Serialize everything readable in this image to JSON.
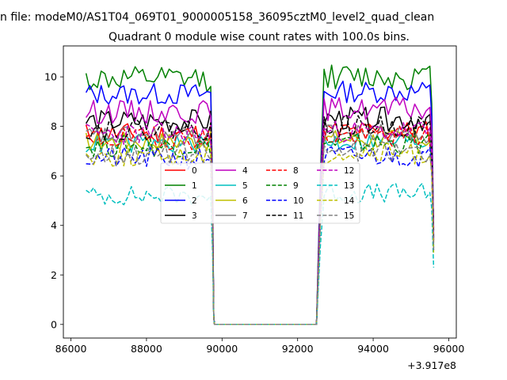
{
  "chart_data": {
    "type": "line",
    "suptitle": "n file: modeM0/AS1T04_069T01_9000005158_36095cztM0_level2_quad_clean",
    "title": "Quadrant 0 module wise count rates with 100.0s bins.",
    "xlabel": "",
    "ylabel": "",
    "offset_text": "+3.917e8",
    "xlim": [
      85800,
      96200
    ],
    "ylim": [
      -0.55,
      11.25
    ],
    "xticks": [
      86000,
      88000,
      90000,
      92000,
      94000,
      96000
    ],
    "xtick_labels": [
      "86000",
      "88000",
      "90000",
      "92000",
      "94000",
      "96000"
    ],
    "yticks": [
      0,
      2,
      4,
      6,
      8,
      10
    ],
    "ytick_labels": [
      "0",
      "2",
      "4",
      "6",
      "8",
      "10"
    ],
    "gap": {
      "start": 89800,
      "end": 92600
    },
    "segment1": {
      "start": 86400,
      "end": 89700
    },
    "segment2": {
      "start": 92700,
      "end": 95600
    },
    "bin": 100,
    "legend_position": "center",
    "series": [
      {
        "name": "0",
        "color": "#ff0000",
        "dash": "solid",
        "level": 7.7,
        "noise": 0.28,
        "seed": 11,
        "last": 3.9
      },
      {
        "name": "1",
        "color": "#008000",
        "dash": "solid",
        "level": 9.9,
        "noise": 0.32,
        "seed": 12,
        "last": 3.4
      },
      {
        "name": "2",
        "color": "#0000ff",
        "dash": "solid",
        "level": 9.3,
        "noise": 0.28,
        "seed": 13,
        "last": 3.6
      },
      {
        "name": "3",
        "color": "#000000",
        "dash": "solid",
        "level": 8.2,
        "noise": 0.3,
        "seed": 14,
        "last": 3.8
      },
      {
        "name": "4",
        "color": "#bf00bf",
        "dash": "solid",
        "level": 8.6,
        "noise": 0.3,
        "seed": 15,
        "last": 3.5
      },
      {
        "name": "5",
        "color": "#00bfbf",
        "dash": "solid",
        "level": 7.3,
        "noise": 0.25,
        "seed": 16,
        "last": 3.2
      },
      {
        "name": "6",
        "color": "#bfbf00",
        "dash": "solid",
        "level": 7.4,
        "noise": 0.25,
        "seed": 17,
        "last": 3.3
      },
      {
        "name": "7",
        "color": "#808080",
        "dash": "solid",
        "level": 7.6,
        "noise": 0.25,
        "seed": 18,
        "last": 3.4
      },
      {
        "name": "8",
        "color": "#ff0000",
        "dash": "dashed",
        "level": 7.5,
        "noise": 0.28,
        "seed": 19,
        "last": 3.3
      },
      {
        "name": "9",
        "color": "#008000",
        "dash": "dashed",
        "level": 7.2,
        "noise": 0.28,
        "seed": 20,
        "last": 3.1
      },
      {
        "name": "10",
        "color": "#0000ff",
        "dash": "dashed",
        "level": 6.7,
        "noise": 0.28,
        "seed": 21,
        "last": 3.0
      },
      {
        "name": "11",
        "color": "#000000",
        "dash": "dashed",
        "level": 7.9,
        "noise": 0.28,
        "seed": 22,
        "last": 3.5
      },
      {
        "name": "12",
        "color": "#bf00bf",
        "dash": "dashed",
        "level": 7.7,
        "noise": 0.28,
        "seed": 23,
        "last": 3.4
      },
      {
        "name": "13",
        "color": "#00bfbf",
        "dash": "dashed",
        "level": 5.2,
        "noise": 0.25,
        "seed": 24,
        "last": 2.3
      },
      {
        "name": "14",
        "color": "#bfbf00",
        "dash": "dashed",
        "level": 6.8,
        "noise": 0.28,
        "seed": 25,
        "last": 2.9
      },
      {
        "name": "15",
        "color": "#808080",
        "dash": "dashed",
        "level": 6.9,
        "noise": 0.28,
        "seed": 26,
        "last": 3.0
      }
    ]
  }
}
